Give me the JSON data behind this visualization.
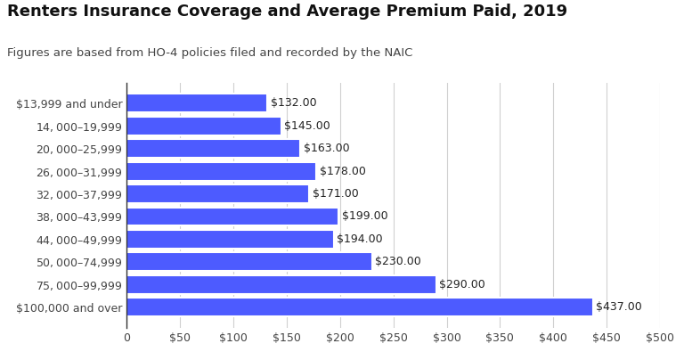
{
  "title": "Renters Insurance Coverage and Average Premium Paid, 2019",
  "subtitle": "Figures are based from HO-4 policies filed and recorded by the NAIC",
  "categories": [
    "$13,999 and under",
    "$14,000–$19,999",
    "$20,000–$25,999",
    "$26,000–$31,999",
    "$32,000–$37,999",
    "$38,000–$43,999",
    "$44,000–$49,999",
    "$50,000–$74,999",
    "$75,000–$99,999",
    "$100,000 and over"
  ],
  "values": [
    132,
    145,
    163,
    178,
    171,
    199,
    194,
    230,
    290,
    437
  ],
  "bar_color": "#4d5bff",
  "bar_edge_color": "#ffffff",
  "value_labels": [
    "$132.00",
    "$145.00",
    "$163.00",
    "$178.00",
    "$171.00",
    "$199.00",
    "$194.00",
    "$230.00",
    "$290.00",
    "$437.00"
  ],
  "xlim": [
    0,
    500
  ],
  "xticks": [
    0,
    50,
    100,
    150,
    200,
    250,
    300,
    350,
    400,
    450,
    500
  ],
  "background_color": "#ffffff",
  "grid_color": "#d0d0d0",
  "title_fontsize": 13,
  "subtitle_fontsize": 9.5,
  "label_fontsize": 9,
  "value_fontsize": 9,
  "tick_fontsize": 9
}
